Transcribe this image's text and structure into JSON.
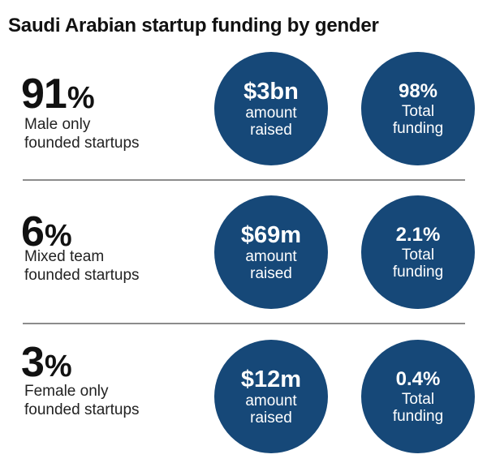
{
  "chart_data": {
    "type": "table",
    "title": "Saudi Arabian startup funding by gender",
    "rows": [
      {
        "share": "91",
        "share_sign": "%",
        "label_line1": "Male only",
        "label_line2": "founded startups",
        "amount": "$3bn",
        "amount_line1": "amount",
        "amount_line2": "raised",
        "funding_share": "98%",
        "funding_line1": "Total",
        "funding_line2": "funding"
      },
      {
        "share": "6",
        "share_sign": "%",
        "label_line1": "Mixed team",
        "label_line2": "founded startups",
        "amount": "$69m",
        "amount_line1": "amount",
        "amount_line2": "raised",
        "funding_share": "2.1%",
        "funding_line1": "Total",
        "funding_line2": "funding"
      },
      {
        "share": "3",
        "share_sign": "%",
        "label_line1": "Female only",
        "label_line2": "founded startups",
        "amount": "$12m",
        "amount_line1": "amount",
        "amount_line2": "raised",
        "funding_share": "0.4%",
        "funding_line1": "Total",
        "funding_line2": "funding"
      }
    ],
    "circle_color": "#164878"
  }
}
